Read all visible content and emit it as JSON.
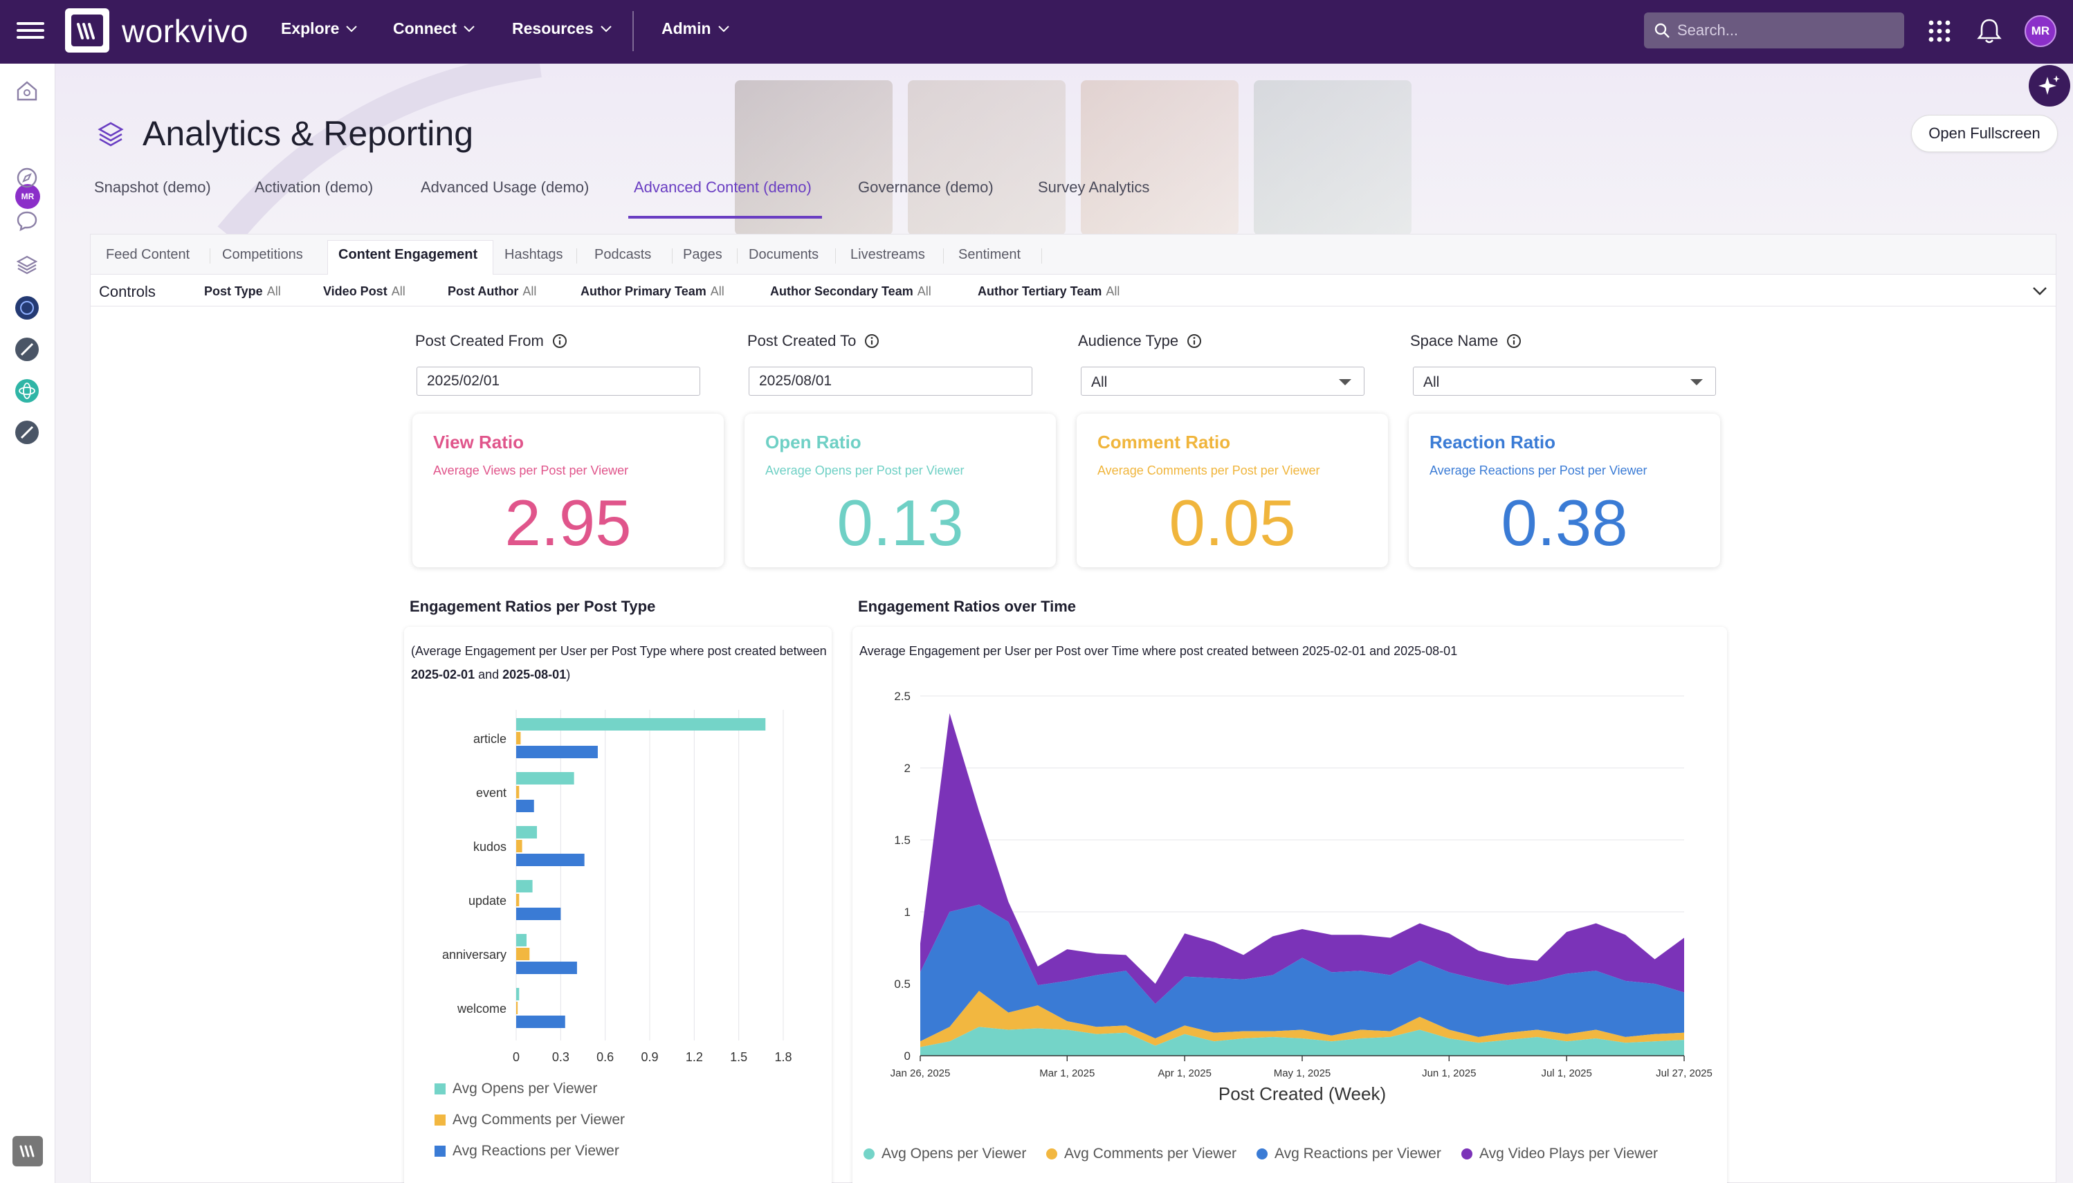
{
  "app": {
    "logo_text": "workvivo",
    "nav": [
      {
        "label": "Explore"
      },
      {
        "label": "Connect"
      },
      {
        "label": "Resources"
      },
      {
        "label": "Admin"
      }
    ],
    "search_placeholder": "Search...",
    "user_initials": "MR"
  },
  "page": {
    "title": "Analytics & Reporting",
    "fullscreen_label": "Open Fullscreen",
    "main_tabs": [
      {
        "label": "Snapshot (demo)"
      },
      {
        "label": "Activation (demo)"
      },
      {
        "label": "Advanced Usage (demo)"
      },
      {
        "label": "Advanced Content (demo)",
        "active": true
      },
      {
        "label": "Governance (demo)"
      },
      {
        "label": "Survey Analytics"
      }
    ],
    "sub_tabs": [
      {
        "label": "Feed Content"
      },
      {
        "label": "Competitions"
      },
      {
        "label": "Content Engagement",
        "active": true
      },
      {
        "label": "Hashtags"
      },
      {
        "label": "Podcasts"
      },
      {
        "label": "Pages"
      },
      {
        "label": "Documents"
      },
      {
        "label": "Livestreams"
      },
      {
        "label": "Sentiment"
      }
    ],
    "controls": {
      "label": "Controls",
      "items": [
        {
          "name": "Post Type",
          "value": "All"
        },
        {
          "name": "Video Post",
          "value": "All"
        },
        {
          "name": "Post Author",
          "value": "All"
        },
        {
          "name": "Author Primary Team",
          "value": "All"
        },
        {
          "name": "Author Secondary Team",
          "value": "All"
        },
        {
          "name": "Author Tertiary Team",
          "value": "All"
        }
      ]
    },
    "filters": {
      "created_from": {
        "label": "Post Created From",
        "value": "2025/02/01"
      },
      "created_to": {
        "label": "Post Created To",
        "value": "2025/08/01"
      },
      "audience_type": {
        "label": "Audience Type",
        "value": "All"
      },
      "space_name": {
        "label": "Space Name",
        "value": "All"
      }
    },
    "kpis": [
      {
        "title": "View Ratio",
        "subtitle": "Average Views per Post per Viewer",
        "value": "2.95",
        "color": "#e0558b"
      },
      {
        "title": "Open Ratio",
        "subtitle": "Average Opens per Post per Viewer",
        "value": "0.13",
        "color": "#6fd0c5"
      },
      {
        "title": "Comment Ratio",
        "subtitle": "Average Comments per Post per Viewer",
        "value": "0.05",
        "color": "#f0b53c"
      },
      {
        "title": "Reaction Ratio",
        "subtitle": "Average Reactions per Post per Viewer",
        "value": "0.38",
        "color": "#3a7bd5"
      }
    ]
  },
  "chart_data": [
    {
      "type": "bar",
      "orientation": "horizontal",
      "title": "Engagement Ratios per Post Type",
      "description_prefix": "(Average Engagement per User per Post Type where post created between ",
      "description_from": "2025-02-01",
      "description_and": " and ",
      "description_to": "2025-08-01",
      "description_suffix": ")",
      "categories": [
        "article",
        "event",
        "kudos",
        "update",
        "anniversary",
        "welcome"
      ],
      "xlim": [
        0,
        1.8
      ],
      "xticks": [
        "0",
        "0.3",
        "0.6",
        "0.9",
        "1.2",
        "1.5",
        "1.8"
      ],
      "series": [
        {
          "name": "Avg Opens per Viewer",
          "color": "#74d4c8",
          "values": [
            1.68,
            0.39,
            0.14,
            0.11,
            0.07,
            0.02
          ]
        },
        {
          "name": "Avg Comments per Viewer",
          "color": "#f2b740",
          "values": [
            0.03,
            0.02,
            0.04,
            0.02,
            0.09,
            0.01
          ]
        },
        {
          "name": "Avg Reactions per Viewer",
          "color": "#3a7bd5",
          "values": [
            0.55,
            0.12,
            0.46,
            0.3,
            0.41,
            0.33
          ]
        }
      ],
      "legend_position": "bottom"
    },
    {
      "type": "area",
      "stacked": true,
      "title": "Engagement Ratios over Time",
      "description": "Average Engagement per User per Post over Time where post created between 2025-02-01 and 2025-08-01",
      "xlabel": "Post Created (Week)",
      "x_ticks": [
        "Jan 26, 2025",
        "Mar 1, 2025",
        "Apr 1, 2025",
        "May 1, 2025",
        "Jun 1, 2025",
        "Jul 1, 2025",
        "Jul 27, 2025"
      ],
      "ylim": [
        0,
        2.5
      ],
      "yticks": [
        "0",
        "0.5",
        "1",
        "1.5",
        "2",
        "2.5"
      ],
      "x": [
        "2025-01-26",
        "2025-02-02",
        "2025-02-09",
        "2025-02-16",
        "2025-02-23",
        "2025-03-02",
        "2025-03-09",
        "2025-03-16",
        "2025-03-23",
        "2025-03-30",
        "2025-04-06",
        "2025-04-13",
        "2025-04-20",
        "2025-04-27",
        "2025-05-04",
        "2025-05-11",
        "2025-05-18",
        "2025-05-25",
        "2025-06-01",
        "2025-06-08",
        "2025-06-15",
        "2025-06-22",
        "2025-06-29",
        "2025-07-06",
        "2025-07-13",
        "2025-07-20",
        "2025-07-27"
      ],
      "series": [
        {
          "name": "Avg Opens per Viewer",
          "color": "#74d4c8",
          "values": [
            0.06,
            0.1,
            0.2,
            0.18,
            0.19,
            0.18,
            0.15,
            0.16,
            0.07,
            0.15,
            0.1,
            0.12,
            0.13,
            0.12,
            0.1,
            0.12,
            0.13,
            0.18,
            0.12,
            0.09,
            0.11,
            0.13,
            0.1,
            0.12,
            0.09,
            0.1,
            0.11
          ]
        },
        {
          "name": "Avg Comments per Viewer",
          "color": "#f2b740",
          "values": [
            0.04,
            0.1,
            0.25,
            0.12,
            0.16,
            0.06,
            0.05,
            0.05,
            0.05,
            0.06,
            0.06,
            0.05,
            0.04,
            0.06,
            0.04,
            0.06,
            0.04,
            0.09,
            0.06,
            0.04,
            0.05,
            0.05,
            0.05,
            0.06,
            0.04,
            0.05,
            0.05
          ]
        },
        {
          "name": "Avg Reactions per Viewer",
          "color": "#3a7bd5",
          "values": [
            0.48,
            0.8,
            0.6,
            0.63,
            0.14,
            0.28,
            0.36,
            0.38,
            0.24,
            0.34,
            0.38,
            0.36,
            0.39,
            0.5,
            0.44,
            0.41,
            0.39,
            0.39,
            0.4,
            0.4,
            0.33,
            0.34,
            0.42,
            0.41,
            0.39,
            0.35,
            0.28
          ]
        },
        {
          "name": "Avg Video Plays per Viewer",
          "color": "#7b33b8",
          "values": [
            0.2,
            1.38,
            0.65,
            0.14,
            0.13,
            0.22,
            0.15,
            0.11,
            0.14,
            0.3,
            0.25,
            0.17,
            0.27,
            0.2,
            0.26,
            0.25,
            0.26,
            0.26,
            0.27,
            0.2,
            0.19,
            0.14,
            0.29,
            0.33,
            0.32,
            0.17,
            0.38
          ]
        }
      ],
      "legend_position": "bottom"
    }
  ]
}
